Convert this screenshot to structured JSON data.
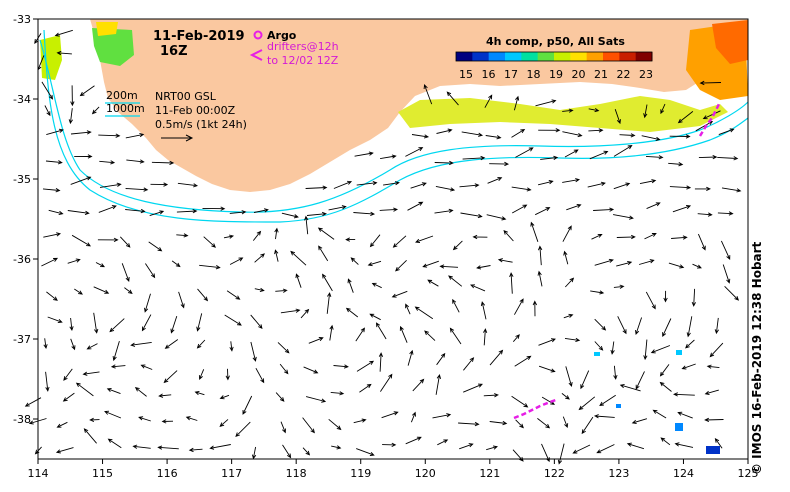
{
  "title": {
    "date": "11-Feb-2019",
    "hour": "16Z"
  },
  "legend": {
    "argo_label": "Argo",
    "drifters_label": "drifters@12h",
    "drifters_range": "to 12/02 12Z",
    "depth_200": "200m",
    "depth_1000": "1000m",
    "product": "NRT00 GSL",
    "product_date": "11-Feb 00:00Z",
    "scale_label": "0.5m/s (1kt 24h)"
  },
  "colorbar": {
    "title": "4h comp, p50, All Sats",
    "ticks": [
      "15",
      "16",
      "17",
      "18",
      "19",
      "20",
      "21",
      "22",
      "23"
    ],
    "colors": [
      "#000080",
      "#0032c8",
      "#0088ff",
      "#00c8ff",
      "#00e0a0",
      "#60e040",
      "#c8f000",
      "#ffe000",
      "#ffa000",
      "#ff5000",
      "#c81e00",
      "#800000"
    ]
  },
  "axes": {
    "x_ticks": [
      "114",
      "115",
      "116",
      "117",
      "118",
      "119",
      "120",
      "121",
      "122",
      "123",
      "124",
      "125"
    ],
    "y_ticks": [
      "-33",
      "-34",
      "-35",
      "-36",
      "-37",
      "-38"
    ],
    "lon_range": [
      114,
      125
    ],
    "lat_range": [
      -38.5,
      -33
    ]
  },
  "colors": {
    "land": "#fac8a0",
    "isobath": "#00d7f0",
    "drifter": "#e61ee6",
    "arrow": "#000000"
  },
  "credit": "© IMOS 16-Feb-2019 12:38 Hobart"
}
